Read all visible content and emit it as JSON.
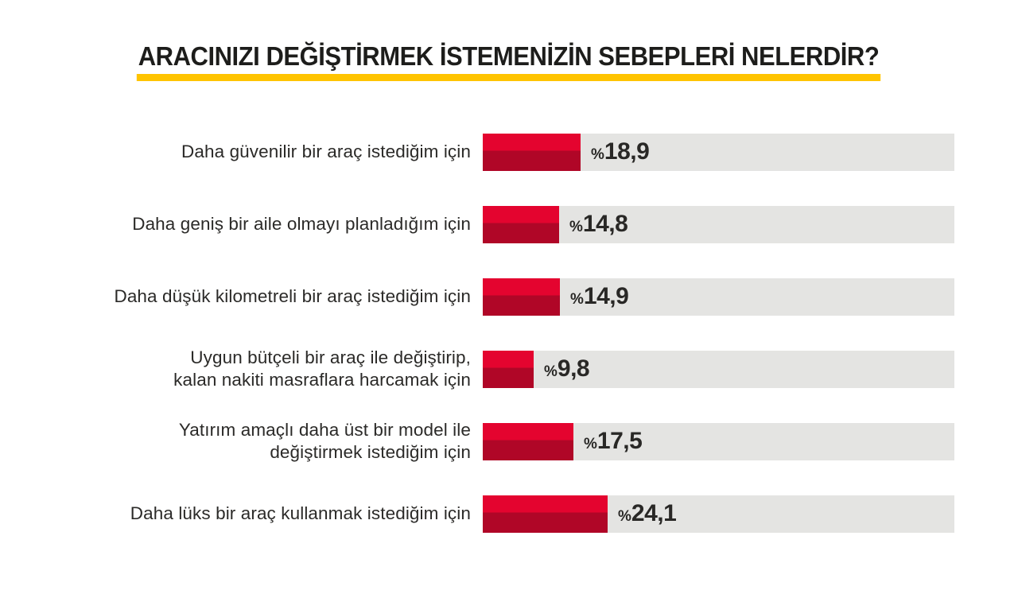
{
  "header": {
    "title": "ARACINIZI DEĞİŞTİRMEK İSTEMENİZİN SEBEPLERİ NELERDİR?"
  },
  "chart_data": {
    "type": "bar",
    "orientation": "horizontal",
    "title": "ARACINIZI DEĞİŞTİRMEK İSTEMENİZİN SEBEPLERİ NELERDİR?",
    "unit": "percent",
    "value_prefix": "%",
    "decimal_separator": ",",
    "grid": false,
    "legend": false,
    "xlim": [
      0,
      100
    ],
    "categories": [
      "Daha güvenilir bir araç istediğim için",
      "Daha geniş bir aile olmayı planladığım için",
      "Daha düşük kilometreli bir araç istediğim için",
      "Uygun bütçeli bir araç ile değiştirip,\nkalan nakiti masraflara harcamak için",
      "Yatırım amaçlı daha üst bir model ile\ndeğiştirmek istediğim için",
      "Daha lüks bir araç kullanmak istediğim için"
    ],
    "values": [
      18.9,
      14.8,
      14.9,
      9.8,
      17.5,
      24.1
    ],
    "value_labels": [
      "18,9",
      "14,8",
      "14,9",
      "9,8",
      "17,5",
      "24,1"
    ],
    "colors": {
      "bar_top": "#e4042f",
      "bar_bottom": "#b00627",
      "track": "#e4e4e2",
      "accent_underline": "#ffc400",
      "title_text": "#1d1d1b",
      "label_text": "#2b2a28",
      "value_text": "#292826",
      "page_bg": "#ffffff"
    }
  }
}
